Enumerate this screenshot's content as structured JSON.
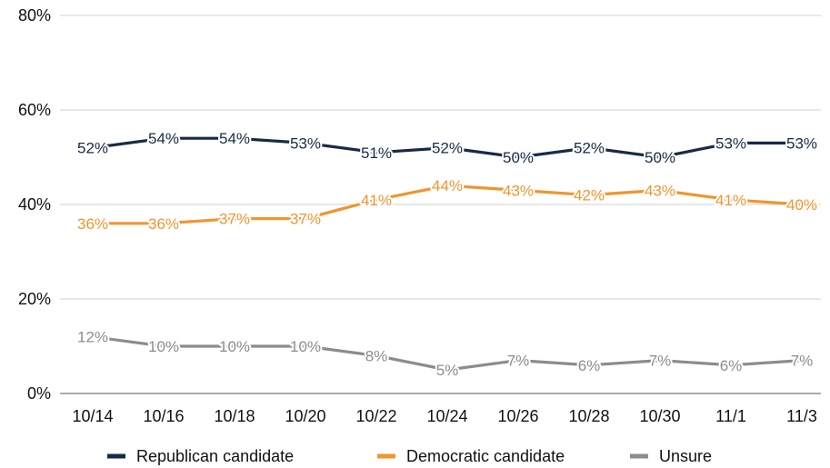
{
  "chart_data": {
    "type": "line",
    "title": "",
    "xlabel": "",
    "ylabel": "",
    "categories": [
      "10/14",
      "10/16",
      "10/18",
      "10/20",
      "10/22",
      "10/24",
      "10/26",
      "10/28",
      "10/30",
      "11/1",
      "11/3"
    ],
    "y_ticks": [
      "0%",
      "20%",
      "40%",
      "60%",
      "80%"
    ],
    "ylim": [
      0,
      80
    ],
    "grid": true,
    "legend_position": "bottom",
    "series": [
      {
        "name": "Republican candidate",
        "color": "#172b45",
        "values": [
          52,
          54,
          54,
          53,
          51,
          52,
          50,
          52,
          50,
          53,
          53
        ],
        "labels": [
          "52%",
          "54%",
          "54%",
          "53%",
          "51%",
          "52%",
          "50%",
          "52%",
          "50%",
          "53%",
          "53%"
        ]
      },
      {
        "name": "Democratic candidate",
        "color": "#f0952f",
        "values": [
          36,
          36,
          37,
          37,
          41,
          44,
          43,
          42,
          43,
          41,
          40
        ],
        "labels": [
          "36%",
          "36%",
          "37%",
          "37%",
          "41%",
          "44%",
          "43%",
          "42%",
          "43%",
          "41%",
          "40%"
        ]
      },
      {
        "name": "Unsure",
        "color": "#8c8c8c",
        "values": [
          12,
          10,
          10,
          10,
          8,
          5,
          7,
          6,
          7,
          6,
          7
        ],
        "labels": [
          "12%",
          "10%",
          "10%",
          "10%",
          "8%",
          "5%",
          "7%",
          "6%",
          "7%",
          "6%",
          "7%"
        ]
      }
    ]
  }
}
